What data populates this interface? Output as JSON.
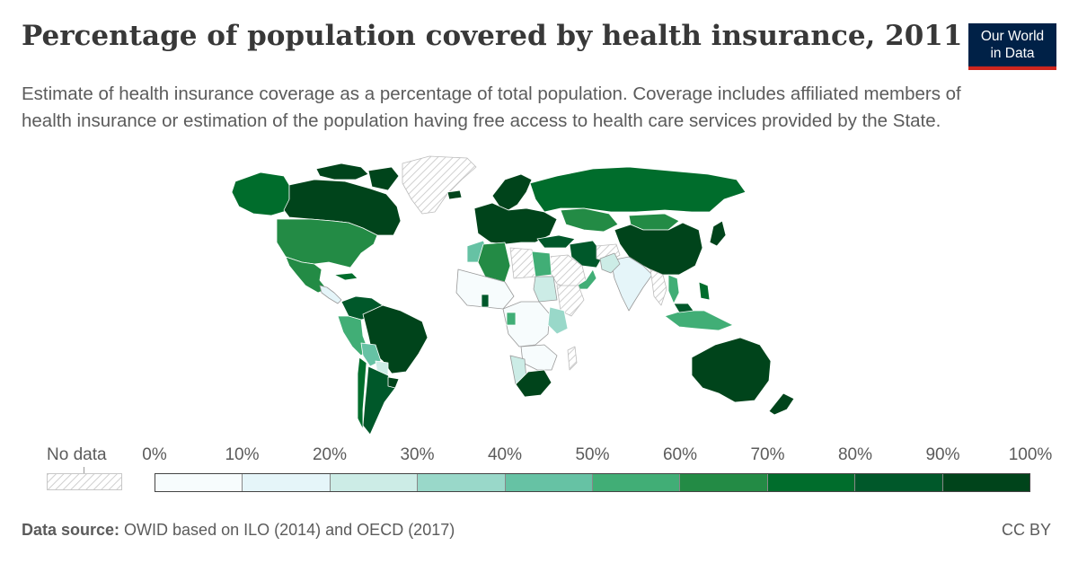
{
  "header": {
    "title": "Percentage of population covered by health insurance, 2011",
    "subtitle": "Estimate of health insurance coverage as a percentage of total population. Coverage includes affiliated members of health insurance or estimation of the population having free access to health care services provided by the State."
  },
  "logo": {
    "line1": "Our World",
    "line2": "in Data",
    "background": "#002147",
    "accent": "#ce261e"
  },
  "legend": {
    "no_data_label": "No data",
    "ticks": [
      "0%",
      "10%",
      "20%",
      "30%",
      "40%",
      "50%",
      "60%",
      "70%",
      "80%",
      "90%",
      "100%"
    ],
    "colors": [
      "#f7fcfd",
      "#e5f5f9",
      "#ccece6",
      "#99d8c9",
      "#66c2a4",
      "#41ae76",
      "#238b45",
      "#006d2c",
      "#00582a",
      "#00441b"
    ]
  },
  "footer": {
    "source_label": "Data source:",
    "source_text": " OWID based on ILO (2014) and OECD (2017)",
    "license": "CC BY"
  }
}
